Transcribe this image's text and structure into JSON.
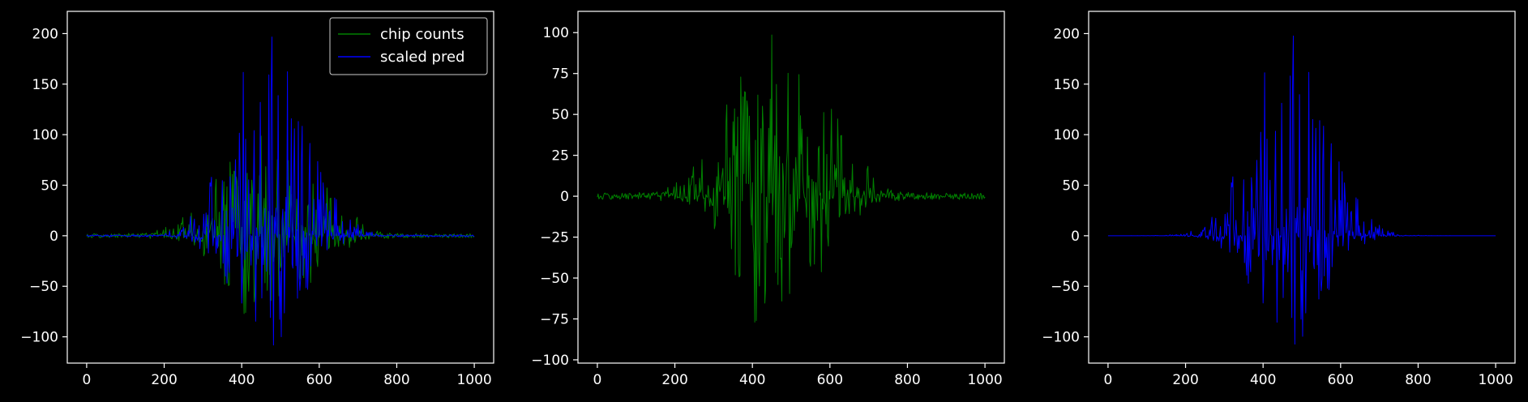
{
  "figure": {
    "background": "#000000",
    "axis_color": "#ffffff",
    "text_color": "#ffffff"
  },
  "chart_data": [
    {
      "type": "line",
      "title": "",
      "xlabel": "",
      "ylabel": "",
      "xlim": [
        -50,
        1050
      ],
      "ylim": [
        -126,
        222
      ],
      "xticks": [
        0,
        200,
        400,
        600,
        800,
        1000
      ],
      "yticks": [
        -100,
        -50,
        0,
        50,
        100,
        150,
        200
      ],
      "grid": false,
      "legend": {
        "position": "top-right",
        "entries": [
          {
            "label": "chip counts",
            "color": "#008000"
          },
          {
            "label": "scaled pred",
            "color": "#0000ff"
          }
        ]
      },
      "series": [
        {
          "name": "chip counts",
          "color": "#008000",
          "envelope": {
            "center": 470,
            "upper_peak": 105,
            "lower_peak": -93,
            "upper_width": 120,
            "lower_width": 100,
            "noise": 2,
            "seed": 11
          }
        },
        {
          "name": "scaled pred",
          "color": "#0000ff",
          "envelope": {
            "center": 470,
            "upper_peak": 210,
            "lower_peak": -112,
            "upper_width": 95,
            "lower_width": 85,
            "noise": 1,
            "seed": 23
          }
        }
      ]
    },
    {
      "type": "line",
      "title": "",
      "xlabel": "",
      "ylabel": "",
      "xlim": [
        -50,
        1050
      ],
      "ylim": [
        -102,
        113
      ],
      "xticks": [
        0,
        200,
        400,
        600,
        800,
        1000
      ],
      "yticks": [
        -100,
        -75,
        -50,
        -25,
        0,
        25,
        50,
        75,
        100
      ],
      "grid": false,
      "series": [
        {
          "name": "chip counts",
          "color": "#008000",
          "envelope": {
            "center": 470,
            "upper_peak": 105,
            "lower_peak": -93,
            "upper_width": 120,
            "lower_width": 100,
            "noise": 2,
            "seed": 11
          }
        }
      ]
    },
    {
      "type": "line",
      "title": "",
      "xlabel": "",
      "ylabel": "",
      "xlim": [
        -50,
        1050
      ],
      "ylim": [
        -126,
        222
      ],
      "xticks": [
        0,
        200,
        400,
        600,
        800,
        1000
      ],
      "yticks": [
        -100,
        -50,
        0,
        50,
        100,
        150,
        200
      ],
      "grid": false,
      "series": [
        {
          "name": "scaled pred",
          "color": "#0000ff",
          "envelope": {
            "center": 470,
            "upper_peak": 210,
            "lower_peak": -112,
            "upper_width": 95,
            "lower_width": 85,
            "noise": 0,
            "seed": 23
          }
        }
      ]
    }
  ]
}
